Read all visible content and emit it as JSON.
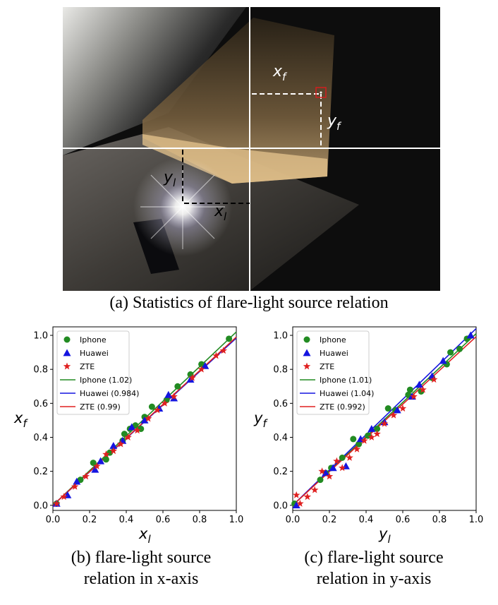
{
  "photo": {
    "x_f_label": "x",
    "x_f_sub": "f",
    "y_f_label": "y",
    "y_f_sub": "f",
    "y_l_label": "y",
    "y_l_sub": "l",
    "x_l_label": "x",
    "x_l_sub": "l",
    "colors": {
      "guide_lines": "#ffffff",
      "marker_box": "#d21f1f"
    }
  },
  "captions": {
    "a": "(a) Statistics of flare-light source relation",
    "b_line1": "(b) flare-light source",
    "b_line2": "relation in x-axis",
    "c_line1": "(c) flare-light source",
    "c_line2": "relation in y-axis"
  },
  "chart_data": [
    {
      "type": "scatter",
      "xlabel": "x",
      "xlabel_sub": "l",
      "ylabel": "x",
      "ylabel_sub": "f",
      "xlim": [
        0,
        1.0
      ],
      "ylim": [
        -0.03,
        1.05
      ],
      "xticks": [
        "0.0",
        "0.2",
        "0.4",
        "0.6",
        "0.8",
        "1.0"
      ],
      "yticks": [
        "0.0",
        "0.2",
        "0.4",
        "0.6",
        "0.8",
        "1.0"
      ],
      "grid": false,
      "legend_position": "top-left",
      "series": [
        {
          "name": "Iphone",
          "marker": "circle",
          "color": "#228b22",
          "x": [
            0.02,
            0.15,
            0.22,
            0.29,
            0.31,
            0.38,
            0.39,
            0.42,
            0.45,
            0.48,
            0.5,
            0.54,
            0.62,
            0.68,
            0.75,
            0.81,
            0.96
          ],
          "y": [
            0.01,
            0.15,
            0.25,
            0.27,
            0.31,
            0.38,
            0.42,
            0.45,
            0.47,
            0.45,
            0.52,
            0.58,
            0.62,
            0.7,
            0.77,
            0.83,
            0.98
          ]
        },
        {
          "name": "Huawei",
          "marker": "triangle",
          "color": "#1515e0",
          "x": [
            0.02,
            0.08,
            0.13,
            0.23,
            0.26,
            0.33,
            0.38,
            0.43,
            0.5,
            0.58,
            0.63,
            0.66,
            0.75,
            0.83
          ],
          "y": [
            0.01,
            0.06,
            0.14,
            0.21,
            0.26,
            0.35,
            0.38,
            0.46,
            0.5,
            0.57,
            0.65,
            0.63,
            0.74,
            0.82
          ]
        },
        {
          "name": "ZTE",
          "marker": "star",
          "color": "#e02020",
          "x": [
            0.02,
            0.06,
            0.12,
            0.18,
            0.24,
            0.29,
            0.33,
            0.37,
            0.41,
            0.46,
            0.52,
            0.57,
            0.61,
            0.66,
            0.76,
            0.81,
            0.89,
            0.93
          ],
          "y": [
            0.01,
            0.05,
            0.11,
            0.17,
            0.23,
            0.3,
            0.32,
            0.36,
            0.4,
            0.44,
            0.51,
            0.56,
            0.6,
            0.64,
            0.75,
            0.8,
            0.88,
            0.91
          ]
        }
      ],
      "fits": [
        {
          "name": "Iphone (1.02)",
          "slope": 1.02,
          "color": "#228b22"
        },
        {
          "name": "Huawei (0.984)",
          "slope": 0.984,
          "color": "#1515e0"
        },
        {
          "name": "ZTE (0.99)",
          "slope": 0.99,
          "color": "#e02020"
        }
      ]
    },
    {
      "type": "scatter",
      "xlabel": "y",
      "xlabel_sub": "l",
      "ylabel": "y",
      "ylabel_sub": "f",
      "xlim": [
        0,
        1.0
      ],
      "ylim": [
        -0.03,
        1.05
      ],
      "xticks": [
        "0.0",
        "0.2",
        "0.4",
        "0.6",
        "0.8",
        "1.0"
      ],
      "yticks": [
        "0.0",
        "0.2",
        "0.4",
        "0.6",
        "0.8",
        "1.0"
      ],
      "grid": false,
      "legend_position": "top-left",
      "series": [
        {
          "name": "Iphone",
          "marker": "circle",
          "color": "#228b22",
          "x": [
            0.01,
            0.15,
            0.18,
            0.21,
            0.27,
            0.33,
            0.36,
            0.41,
            0.46,
            0.52,
            0.56,
            0.63,
            0.64,
            0.7,
            0.76,
            0.84,
            0.86,
            0.91,
            0.95
          ],
          "y": [
            0.01,
            0.15,
            0.19,
            0.22,
            0.28,
            0.39,
            0.36,
            0.41,
            0.45,
            0.57,
            0.56,
            0.65,
            0.68,
            0.67,
            0.75,
            0.83,
            0.9,
            0.92,
            0.98
          ]
        },
        {
          "name": "Huawei",
          "marker": "triangle",
          "color": "#1515e0",
          "x": [
            0.02,
            0.18,
            0.22,
            0.29,
            0.37,
            0.43,
            0.5,
            0.57,
            0.65,
            0.69,
            0.76,
            0.82,
            0.97
          ],
          "y": [
            0.0,
            0.19,
            0.22,
            0.23,
            0.39,
            0.45,
            0.49,
            0.56,
            0.64,
            0.71,
            0.76,
            0.85,
            1.0
          ]
        },
        {
          "name": "ZTE",
          "marker": "star",
          "color": "#e02020",
          "x": [
            0.02,
            0.04,
            0.08,
            0.12,
            0.16,
            0.2,
            0.24,
            0.27,
            0.31,
            0.35,
            0.39,
            0.43,
            0.46,
            0.5,
            0.55,
            0.6,
            0.66,
            0.71,
            0.77
          ],
          "y": [
            0.06,
            0.01,
            0.05,
            0.09,
            0.2,
            0.17,
            0.26,
            0.22,
            0.28,
            0.33,
            0.38,
            0.4,
            0.42,
            0.48,
            0.53,
            0.57,
            0.64,
            0.68,
            0.74
          ]
        }
      ],
      "fits": [
        {
          "name": "Iphone (1.01)",
          "slope": 1.01,
          "color": "#228b22"
        },
        {
          "name": "Huawei (1.04)",
          "slope": 1.04,
          "color": "#1515e0"
        },
        {
          "name": "ZTE (0.992)",
          "slope": 0.992,
          "color": "#e02020"
        }
      ]
    }
  ]
}
